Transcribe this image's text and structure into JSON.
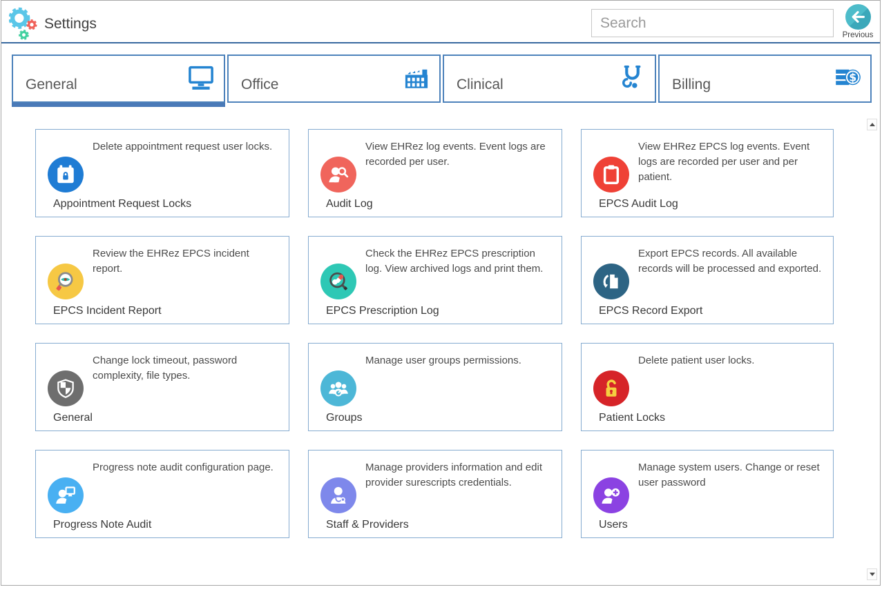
{
  "app": {
    "title": "Settings"
  },
  "header": {
    "search_placeholder": "Search",
    "previous_label": "Previous"
  },
  "logo": {
    "name": "gears-logo",
    "gear_large_color": "#5ac6e8",
    "gear_small_red_color": "#f0625a",
    "gear_small_green_color": "#43d1a0"
  },
  "tabs": [
    {
      "label": "General",
      "icon": "monitor-icon",
      "selected": true
    },
    {
      "label": "Office",
      "icon": "factory-icon",
      "selected": false
    },
    {
      "label": "Clinical",
      "icon": "stethoscope-icon",
      "selected": false
    },
    {
      "label": "Billing",
      "icon": "billing-icon",
      "selected": false
    }
  ],
  "cards": [
    {
      "title": "Appointment Request Locks",
      "description": "Delete appointment request user locks.",
      "icon": "calendar-lock-icon",
      "icon_color": "#1f7cd4"
    },
    {
      "title": "Audit Log",
      "description": "View EHRez log events. Event logs are recorded per user.",
      "icon": "user-search-icon",
      "icon_color": "#f0655c"
    },
    {
      "title": "EPCS Audit Log",
      "description": "View EHRez EPCS log events. Event logs are recorded per user and per patient.",
      "icon": "clipboard-icon",
      "icon_color": "#ef4136"
    },
    {
      "title": "EPCS Incident Report",
      "description": "Review the EHRez EPCS incident report.",
      "icon": "magnifier-eye-icon",
      "icon_color": "#f6c844"
    },
    {
      "title": "EPCS Prescription Log",
      "description": "Check the EHRez EPCS prescription log. View archived logs and print them.",
      "icon": "magnifier-pills-icon",
      "icon_color": "#2ec8b5"
    },
    {
      "title": "EPCS Record Export",
      "description": "Export EPCS records. All available records will be processed and exported.",
      "icon": "document-export-icon",
      "icon_color": "#2d6484"
    },
    {
      "title": "General",
      "description": "Change lock timeout, password complexity, file types.",
      "icon": "shield-icon",
      "icon_color": "#6e6e6e"
    },
    {
      "title": "Groups",
      "description": "Manage user groups permissions.",
      "icon": "user-group-icon",
      "icon_color": "#4db7d7"
    },
    {
      "title": "Patient Locks",
      "description": "Delete patient user locks.",
      "icon": "padlock-icon",
      "icon_color": "#d62428"
    },
    {
      "title": "Progress Note Audit",
      "description": "Progress note audit configuration page.",
      "icon": "user-monitor-icon",
      "icon_color": "#49b0f2"
    },
    {
      "title": "Staff & Providers",
      "description": "Manage providers information and edit provider surescripts credentials.",
      "icon": "doctor-icon",
      "icon_color": "#7e88eb"
    },
    {
      "title": "Users",
      "description": "Manage system users. Change or reset user password",
      "icon": "user-add-icon",
      "icon_color": "#8b42e2"
    }
  ],
  "scrollbar": {
    "up_icon": "scroll-up-icon",
    "down_icon": "scroll-down-icon"
  }
}
